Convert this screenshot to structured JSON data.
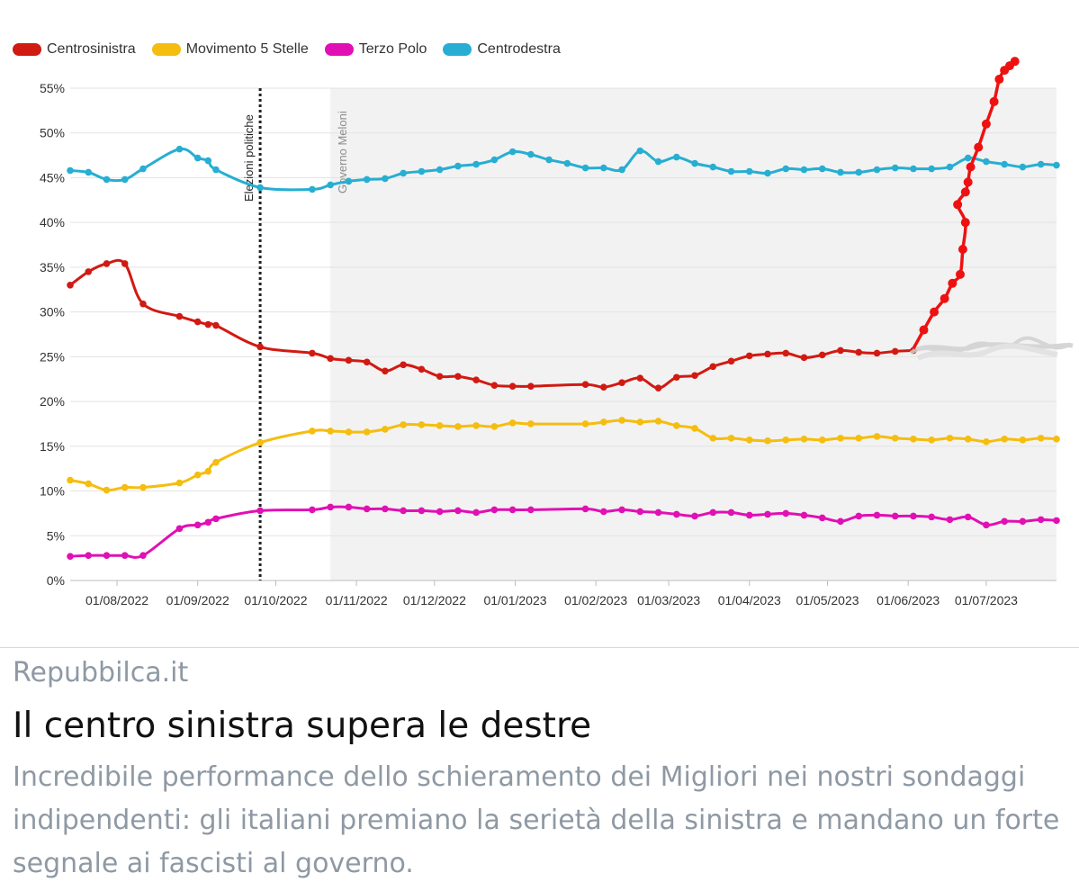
{
  "colors": {
    "centrosinistra": "#d11a12",
    "movimento5stelle": "#f5bd0e",
    "terzopolo": "#e010b4",
    "centrodestra": "#27aed2",
    "hack": "#ee1111",
    "scribble": "#d0d0d0",
    "shade": "#f2f2f2",
    "grid": "#e3e3e3",
    "annot": "#8c8c8c"
  },
  "legend": [
    {
      "key": "centrosinistra",
      "label": "Centrosinistra"
    },
    {
      "key": "movimento5stelle",
      "label": "Movimento 5 Stelle"
    },
    {
      "key": "terzopolo",
      "label": "Terzo Polo"
    },
    {
      "key": "centrodestra",
      "label": "Centrodestra"
    }
  ],
  "chart_data": {
    "type": "line",
    "y_unit": "%",
    "ylim": [
      0,
      55
    ],
    "y_ticks": [
      0,
      5,
      10,
      15,
      20,
      25,
      30,
      35,
      40,
      45,
      50,
      55
    ],
    "y_tick_labels": [
      "0%",
      "5%",
      "10%",
      "15%",
      "20%",
      "25%",
      "30%",
      "35%",
      "40%",
      "45%",
      "50%",
      "55%"
    ],
    "xlim": [
      "2022-07-14",
      "2023-07-28"
    ],
    "x_ticks": [
      "2022-08-01",
      "2022-09-01",
      "2022-10-01",
      "2022-11-01",
      "2022-12-01",
      "2023-01-01",
      "2023-02-01",
      "2023-03-01",
      "2023-04-01",
      "2023-05-01",
      "2023-06-01",
      "2023-07-01"
    ],
    "x_tick_labels": [
      "01/08/2022",
      "01/09/2022",
      "01/10/2022",
      "01/11/2022",
      "01/12/2022",
      "01/01/2023",
      "01/02/2023",
      "01/03/2023",
      "01/04/2023",
      "01/05/2023",
      "01/06/2023",
      "01/07/2023"
    ],
    "grid": true,
    "legend_position": "top-left",
    "annotations": {
      "elezioni": {
        "date": "2022-09-25",
        "label": "Elezioni politiche"
      },
      "governo": {
        "date": "2022-10-22",
        "label": "Governo Meloni"
      }
    },
    "series": [
      {
        "key": "centrodestra",
        "name": "Centrodestra",
        "x": [
          "2022-07-14",
          "2022-07-21",
          "2022-07-28",
          "2022-08-04",
          "2022-08-11",
          "2022-08-25",
          "2022-09-01",
          "2022-09-05",
          "2022-09-08",
          "2022-09-25",
          "2022-10-15",
          "2022-10-22",
          "2022-10-29",
          "2022-11-05",
          "2022-11-12",
          "2022-11-19",
          "2022-11-26",
          "2022-12-03",
          "2022-12-10",
          "2022-12-17",
          "2022-12-24",
          "2022-12-31",
          "2023-01-07",
          "2023-01-14",
          "2023-01-21",
          "2023-01-28",
          "2023-02-04",
          "2023-02-11",
          "2023-02-18",
          "2023-02-25",
          "2023-03-04",
          "2023-03-11",
          "2023-03-18",
          "2023-03-25",
          "2023-04-01",
          "2023-04-08",
          "2023-04-15",
          "2023-04-22",
          "2023-04-29",
          "2023-05-06",
          "2023-05-13",
          "2023-05-20",
          "2023-05-27",
          "2023-06-03",
          "2023-06-10",
          "2023-06-17",
          "2023-06-24",
          "2023-07-01",
          "2023-07-08",
          "2023-07-15",
          "2023-07-22",
          "2023-07-28"
        ],
        "y": [
          45.8,
          45.6,
          44.8,
          44.8,
          46.0,
          48.2,
          47.2,
          46.9,
          45.9,
          43.9,
          43.7,
          44.2,
          44.6,
          44.8,
          44.9,
          45.5,
          45.7,
          45.9,
          46.3,
          46.5,
          47.0,
          47.9,
          47.6,
          47.0,
          46.6,
          46.1,
          46.1,
          45.9,
          48.0,
          46.8,
          47.3,
          46.6,
          46.2,
          45.7,
          45.7,
          45.5,
          46.0,
          45.9,
          46.0,
          45.6,
          45.6,
          45.9,
          46.1,
          46.0,
          46.0,
          46.2,
          47.2,
          46.8,
          46.5,
          46.2,
          46.5,
          46.4
        ]
      },
      {
        "key": "centrosinistra",
        "name": "Centrosinistra",
        "x": [
          "2022-07-14",
          "2022-07-21",
          "2022-07-28",
          "2022-08-04",
          "2022-08-11",
          "2022-08-25",
          "2022-09-01",
          "2022-09-05",
          "2022-09-08",
          "2022-09-25",
          "2022-10-15",
          "2022-10-22",
          "2022-10-29",
          "2022-11-05",
          "2022-11-12",
          "2022-11-19",
          "2022-11-26",
          "2022-12-03",
          "2022-12-10",
          "2022-12-17",
          "2022-12-24",
          "2022-12-31",
          "2023-01-07",
          "2023-01-28",
          "2023-02-04",
          "2023-02-11",
          "2023-02-18",
          "2023-02-25",
          "2023-03-04",
          "2023-03-11",
          "2023-03-18",
          "2023-03-25",
          "2023-04-01",
          "2023-04-08",
          "2023-04-15",
          "2023-04-22",
          "2023-04-29",
          "2023-05-06",
          "2023-05-13",
          "2023-05-20",
          "2023-05-27",
          "2023-06-03"
        ],
        "y": [
          33.0,
          34.5,
          35.4,
          35.4,
          30.9,
          29.5,
          28.9,
          28.6,
          28.5,
          26.1,
          25.4,
          24.8,
          24.6,
          24.4,
          23.4,
          24.1,
          23.6,
          22.8,
          22.8,
          22.4,
          21.8,
          21.7,
          21.7,
          21.9,
          21.6,
          22.1,
          22.6,
          21.5,
          22.7,
          22.9,
          23.9,
          24.5,
          25.1,
          25.3,
          25.4,
          24.9,
          25.2,
          25.7,
          25.5,
          25.4,
          25.6,
          25.7
        ]
      },
      {
        "key": "movimento5stelle",
        "name": "Movimento 5 Stelle",
        "x": [
          "2022-07-14",
          "2022-07-21",
          "2022-07-28",
          "2022-08-04",
          "2022-08-11",
          "2022-08-25",
          "2022-09-01",
          "2022-09-05",
          "2022-09-08",
          "2022-09-25",
          "2022-10-15",
          "2022-10-22",
          "2022-10-29",
          "2022-11-05",
          "2022-11-12",
          "2022-11-19",
          "2022-11-26",
          "2022-12-03",
          "2022-12-10",
          "2022-12-17",
          "2022-12-24",
          "2022-12-31",
          "2023-01-07",
          "2023-01-28",
          "2023-02-04",
          "2023-02-11",
          "2023-02-18",
          "2023-02-25",
          "2023-03-04",
          "2023-03-11",
          "2023-03-18",
          "2023-03-25",
          "2023-04-01",
          "2023-04-08",
          "2023-04-15",
          "2023-04-22",
          "2023-04-29",
          "2023-05-06",
          "2023-05-13",
          "2023-05-20",
          "2023-05-27",
          "2023-06-03",
          "2023-06-10",
          "2023-06-17",
          "2023-06-24",
          "2023-07-01",
          "2023-07-08",
          "2023-07-15",
          "2023-07-22",
          "2023-07-28"
        ],
        "y": [
          11.2,
          10.8,
          10.1,
          10.4,
          10.4,
          10.9,
          11.8,
          12.2,
          13.2,
          15.4,
          16.7,
          16.7,
          16.6,
          16.6,
          16.9,
          17.4,
          17.4,
          17.3,
          17.2,
          17.3,
          17.2,
          17.6,
          17.5,
          17.5,
          17.7,
          17.9,
          17.7,
          17.8,
          17.3,
          17.0,
          15.9,
          15.9,
          15.7,
          15.6,
          15.7,
          15.8,
          15.7,
          15.9,
          15.9,
          16.1,
          15.9,
          15.8,
          15.7,
          15.9,
          15.8,
          15.5,
          15.8,
          15.7,
          15.9,
          15.8
        ]
      },
      {
        "key": "terzopolo",
        "name": "Terzo Polo",
        "x": [
          "2022-07-14",
          "2022-07-21",
          "2022-07-28",
          "2022-08-04",
          "2022-08-11",
          "2022-08-25",
          "2022-09-01",
          "2022-09-05",
          "2022-09-08",
          "2022-09-25",
          "2022-10-15",
          "2022-10-22",
          "2022-10-29",
          "2022-11-05",
          "2022-11-12",
          "2022-11-19",
          "2022-11-26",
          "2022-12-03",
          "2022-12-10",
          "2022-12-17",
          "2022-12-24",
          "2022-12-31",
          "2023-01-07",
          "2023-01-28",
          "2023-02-04",
          "2023-02-11",
          "2023-02-18",
          "2023-02-25",
          "2023-03-04",
          "2023-03-11",
          "2023-03-18",
          "2023-03-25",
          "2023-04-01",
          "2023-04-08",
          "2023-04-15",
          "2023-04-22",
          "2023-04-29",
          "2023-05-06",
          "2023-05-13",
          "2023-05-20",
          "2023-05-27",
          "2023-06-03",
          "2023-06-10",
          "2023-06-17",
          "2023-06-24",
          "2023-07-01",
          "2023-07-08",
          "2023-07-15",
          "2023-07-22",
          "2023-07-28"
        ],
        "y": [
          2.7,
          2.8,
          2.8,
          2.8,
          2.8,
          5.8,
          6.2,
          6.5,
          6.9,
          7.8,
          7.9,
          8.2,
          8.2,
          8.0,
          8.0,
          7.8,
          7.8,
          7.7,
          7.8,
          7.6,
          7.9,
          7.9,
          7.9,
          8.0,
          7.7,
          7.9,
          7.7,
          7.6,
          7.4,
          7.2,
          7.6,
          7.6,
          7.3,
          7.4,
          7.5,
          7.3,
          7.0,
          6.6,
          7.2,
          7.3,
          7.2,
          7.2,
          7.1,
          6.8,
          7.1,
          6.2,
          6.6,
          6.6,
          6.8,
          6.7
        ]
      },
      {
        "key": "hack",
        "name": "Centrosinistra",
        "x": [
          "2023-06-03",
          "2023-06-07",
          "2023-06-11",
          "2023-06-15",
          "2023-06-18",
          "2023-06-21",
          "2023-06-22",
          "2023-06-23",
          "2023-06-20",
          "2023-06-23",
          "2023-06-24",
          "2023-06-25",
          "2023-06-28",
          "2023-07-01",
          "2023-07-04",
          "2023-07-06",
          "2023-07-08",
          "2023-07-10",
          "2023-07-12"
        ],
        "y": [
          25.9,
          28.0,
          30.0,
          31.5,
          33.2,
          34.2,
          37.0,
          40.0,
          42.0,
          43.4,
          44.5,
          46.2,
          48.4,
          51.0,
          53.5,
          56.0,
          57.0,
          57.5,
          58.0
        ]
      }
    ]
  },
  "footer": {
    "source": "Repubbilca.it",
    "headline": "Il centro sinistra supera le destre",
    "subtitle": "Incredibile performance dello schieramento dei Migliori nei nostri sondaggi indipendenti: gli italiani premiano la serietà della sinistra e mandano un forte segnale ai fascisti al governo."
  }
}
